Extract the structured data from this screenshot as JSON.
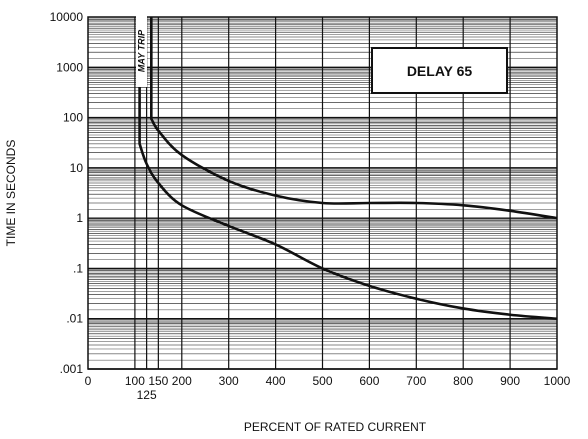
{
  "chart_data": {
    "type": "line",
    "xlabel": "PERCENT OF RATED CURRENT",
    "ylabel": "TIME IN SECONDS",
    "xlim": [
      0,
      1000
    ],
    "ylim": [
      0.001,
      10000
    ],
    "y_scale": "log",
    "grid": true,
    "x_ticks": [
      {
        "value": 0,
        "label": "0"
      },
      {
        "value": 100,
        "label": "100"
      },
      {
        "value": 150,
        "label": "150"
      },
      {
        "value": 200,
        "label": "200"
      },
      {
        "value": 300,
        "label": "300"
      },
      {
        "value": 400,
        "label": "400"
      },
      {
        "value": 500,
        "label": "500"
      },
      {
        "value": 600,
        "label": "600"
      },
      {
        "value": 700,
        "label": "700"
      },
      {
        "value": 800,
        "label": "800"
      },
      {
        "value": 900,
        "label": "900"
      },
      {
        "value": 1000,
        "label": "1000"
      }
    ],
    "x_tick_extra": {
      "value": 125,
      "label": "125"
    },
    "y_ticks": [
      {
        "value": 10000,
        "label": "10000"
      },
      {
        "value": 1000,
        "label": "1000"
      },
      {
        "value": 100,
        "label": "100"
      },
      {
        "value": 10,
        "label": "10"
      },
      {
        "value": 1,
        "label": "1"
      },
      {
        "value": 0.1,
        "label": ".1"
      },
      {
        "value": 0.01,
        "label": ".01"
      },
      {
        "value": 0.001,
        "label": ".001"
      }
    ],
    "annotations": [
      {
        "text": "DELAY 65",
        "position": "top-right"
      },
      {
        "text": "MAY TRIP",
        "position": "vertical band between 110 and 125 percent"
      }
    ],
    "series": [
      {
        "x": [
          110,
          110,
          125,
          150,
          200,
          300,
          400,
          500,
          600,
          700,
          800,
          900,
          1000
        ],
        "y": [
          10000,
          30,
          12,
          5,
          1.8,
          0.7,
          0.3,
          0.1,
          0.045,
          0.025,
          0.016,
          0.012,
          0.01
        ]
      },
      {
        "x": [
          135,
          135,
          150,
          200,
          300,
          400,
          500,
          600,
          700,
          800,
          900,
          1000
        ],
        "y": [
          10000,
          95,
          55,
          18,
          5.5,
          2.8,
          2,
          2,
          2,
          1.8,
          1.4,
          1
        ]
      }
    ]
  }
}
